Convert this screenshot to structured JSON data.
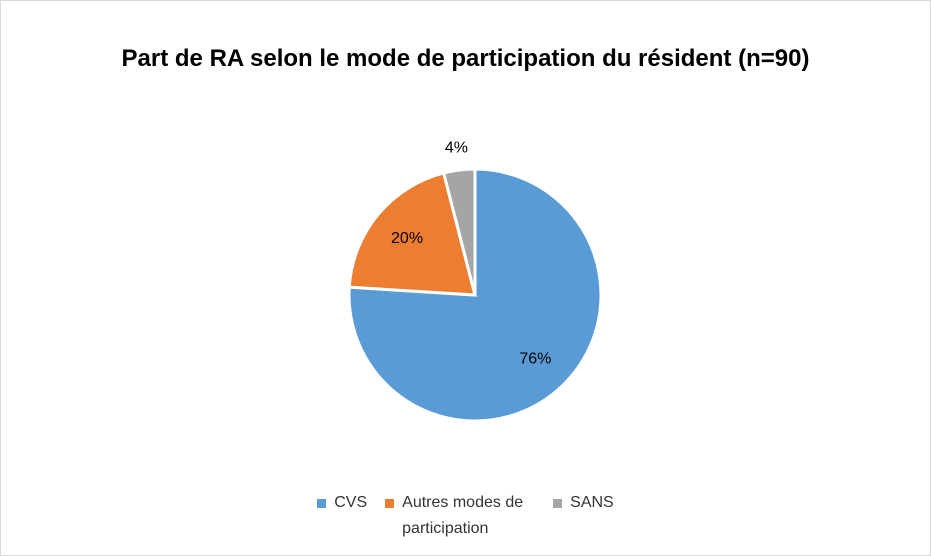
{
  "chart_data": {
    "type": "pie",
    "title": "Part de RA selon le mode de participation du résident (n=90)",
    "categories": [
      "CVS",
      "Autres modes de participation",
      "SANS"
    ],
    "values": [
      76,
      20,
      4
    ],
    "value_labels": [
      "76%",
      "20%",
      "4%"
    ],
    "colors": [
      "#5b9bd5",
      "#ed7d31",
      "#a5a5a5"
    ],
    "legend": "bottom"
  }
}
